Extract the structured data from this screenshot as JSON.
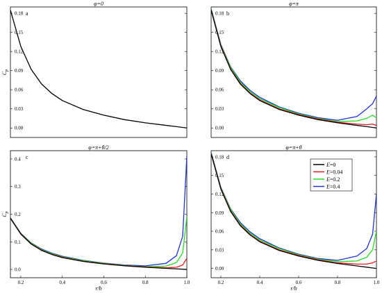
{
  "colors": {
    "E=0": "#000000",
    "E=0.04": "#e41a1c",
    "E=0.2": "#22dd22",
    "E=0.4": "#1f32d6"
  },
  "legend": {
    "placement": "top-right of panel d",
    "entries": [
      {
        "prefix": "E",
        "value": "=0",
        "color": "#000000"
      },
      {
        "prefix": "E",
        "value": "=0.04",
        "color": "#e41a1c"
      },
      {
        "prefix": "E",
        "value": "=0.2",
        "color": "#22dd22"
      },
      {
        "prefix": "E",
        "value": "=0.4",
        "color": "#1f32d6"
      }
    ]
  },
  "chart_data": [
    {
      "type": "line",
      "panel_label": "a",
      "title": "φ=0",
      "xlabel": "",
      "ylabel": "C_p",
      "xlim": [
        0.15,
        1.0
      ],
      "ylim": [
        -0.015,
        0.19
      ],
      "xticks": [],
      "yticks": [
        0.0,
        0.03,
        0.06,
        0.09,
        0.12,
        0.15,
        0.18
      ],
      "yticklabels": [
        "0.00",
        "0.03",
        "0.06",
        "0.09",
        "0.12",
        "0.15",
        "0.18"
      ],
      "series": [
        {
          "name": "E=0",
          "color": "#000000",
          "x": [
            0.15,
            0.2,
            0.25,
            0.3,
            0.35,
            0.4,
            0.5,
            0.6,
            0.7,
            0.8,
            0.9,
            1.0
          ],
          "y": [
            0.185,
            0.128,
            0.092,
            0.069,
            0.054,
            0.043,
            0.029,
            0.02,
            0.013,
            0.008,
            0.004,
            0.0
          ]
        }
      ]
    },
    {
      "type": "line",
      "panel_label": "b",
      "title": "φ=π",
      "xlabel": "",
      "ylabel": "",
      "xlim": [
        0.15,
        1.0
      ],
      "ylim": [
        -0.015,
        0.19
      ],
      "xticks": [],
      "yticks": [
        0.0,
        0.03,
        0.06,
        0.09,
        0.12,
        0.15,
        0.18
      ],
      "yticklabels": [
        "0.00",
        "0.03",
        "0.06",
        "0.09",
        "0.12",
        "0.15",
        "0.18"
      ],
      "series": [
        {
          "name": "E=0",
          "color": "#000000",
          "x": [
            0.15,
            0.2,
            0.25,
            0.3,
            0.35,
            0.4,
            0.5,
            0.6,
            0.7,
            0.8,
            0.9,
            0.95,
            1.0
          ],
          "y": [
            0.185,
            0.128,
            0.092,
            0.069,
            0.054,
            0.043,
            0.029,
            0.02,
            0.013,
            0.008,
            0.004,
            0.002,
            0.0
          ]
        },
        {
          "name": "E=0.04",
          "color": "#e41a1c",
          "x": [
            0.15,
            0.2,
            0.25,
            0.3,
            0.35,
            0.4,
            0.5,
            0.6,
            0.7,
            0.8,
            0.9,
            0.95,
            0.98,
            1.0
          ],
          "y": [
            0.185,
            0.129,
            0.093,
            0.07,
            0.055,
            0.044,
            0.03,
            0.021,
            0.014,
            0.009,
            0.006,
            0.005,
            0.006,
            0.004
          ]
        },
        {
          "name": "E=0.2",
          "color": "#22dd22",
          "x": [
            0.15,
            0.2,
            0.25,
            0.3,
            0.35,
            0.4,
            0.5,
            0.6,
            0.7,
            0.8,
            0.9,
            0.95,
            0.98,
            1.0
          ],
          "y": [
            0.186,
            0.13,
            0.095,
            0.072,
            0.057,
            0.046,
            0.032,
            0.022,
            0.015,
            0.01,
            0.011,
            0.015,
            0.02,
            0.016
          ]
        },
        {
          "name": "E=0.4",
          "color": "#1f32d6",
          "x": [
            0.15,
            0.2,
            0.25,
            0.3,
            0.35,
            0.4,
            0.5,
            0.6,
            0.7,
            0.8,
            0.9,
            0.95,
            0.98,
            1.0
          ],
          "y": [
            0.187,
            0.131,
            0.096,
            0.074,
            0.059,
            0.048,
            0.033,
            0.023,
            0.016,
            0.012,
            0.018,
            0.03,
            0.038,
            0.05
          ]
        }
      ]
    },
    {
      "type": "line",
      "panel_label": "c",
      "title": "φ=π+θ/2",
      "xlabel": "r/b",
      "ylabel": "C_p",
      "xlim": [
        0.15,
        1.0
      ],
      "ylim": [
        -0.03,
        0.43
      ],
      "xticks": [
        0.2,
        0.4,
        0.6,
        0.8,
        1.0
      ],
      "xticklabels": [
        "0.2",
        "0.4",
        "0.6",
        "0.8",
        "1.0"
      ],
      "yticks": [
        0.0,
        0.1,
        0.2,
        0.3,
        0.4
      ],
      "yticklabels": [
        "0.0",
        "0.1",
        "0.2",
        "0.3",
        "0.4"
      ],
      "series": [
        {
          "name": "E=0",
          "color": "#000000",
          "x": [
            0.15,
            0.2,
            0.25,
            0.3,
            0.35,
            0.4,
            0.5,
            0.6,
            0.7,
            0.8,
            0.9,
            0.95,
            1.0
          ],
          "y": [
            0.185,
            0.128,
            0.092,
            0.069,
            0.054,
            0.043,
            0.029,
            0.02,
            0.013,
            0.008,
            0.004,
            0.002,
            0.0
          ]
        },
        {
          "name": "E=0.04",
          "color": "#e41a1c",
          "x": [
            0.15,
            0.2,
            0.25,
            0.3,
            0.35,
            0.4,
            0.5,
            0.6,
            0.7,
            0.8,
            0.9,
            0.95,
            0.98,
            1.0
          ],
          "y": [
            0.185,
            0.129,
            0.093,
            0.07,
            0.055,
            0.044,
            0.03,
            0.021,
            0.014,
            0.009,
            0.006,
            0.008,
            0.016,
            0.04
          ]
        },
        {
          "name": "E=0.2",
          "color": "#22dd22",
          "x": [
            0.15,
            0.2,
            0.25,
            0.3,
            0.35,
            0.4,
            0.5,
            0.6,
            0.7,
            0.8,
            0.9,
            0.95,
            0.98,
            1.0
          ],
          "y": [
            0.186,
            0.13,
            0.095,
            0.072,
            0.057,
            0.046,
            0.032,
            0.022,
            0.015,
            0.01,
            0.012,
            0.025,
            0.06,
            0.19
          ]
        },
        {
          "name": "E=0.4",
          "color": "#1f32d6",
          "x": [
            0.15,
            0.2,
            0.25,
            0.3,
            0.35,
            0.4,
            0.5,
            0.6,
            0.7,
            0.8,
            0.9,
            0.95,
            0.98,
            1.0
          ],
          "y": [
            0.187,
            0.131,
            0.096,
            0.074,
            0.059,
            0.048,
            0.033,
            0.023,
            0.016,
            0.013,
            0.022,
            0.05,
            0.12,
            0.41
          ]
        }
      ]
    },
    {
      "type": "line",
      "panel_label": "d",
      "title": "φ=π+θ",
      "xlabel": "r/b",
      "ylabel": "",
      "xlim": [
        0.15,
        1.0
      ],
      "ylim": [
        -0.015,
        0.19
      ],
      "xticks": [
        0.2,
        0.4,
        0.6,
        0.8,
        1.0
      ],
      "xticklabels": [
        "0.2",
        "0.4",
        "0.6",
        "0.8",
        "1.0"
      ],
      "yticks": [
        0.0,
        0.03,
        0.06,
        0.09,
        0.12,
        0.15,
        0.18
      ],
      "yticklabels": [
        "0.00",
        "0.03",
        "0.06",
        "0.09",
        "0.12",
        "0.15",
        "0.18"
      ],
      "series": [
        {
          "name": "E=0",
          "color": "#000000",
          "x": [
            0.15,
            0.2,
            0.25,
            0.3,
            0.35,
            0.4,
            0.5,
            0.6,
            0.7,
            0.8,
            0.9,
            0.95,
            1.0
          ],
          "y": [
            0.185,
            0.128,
            0.092,
            0.069,
            0.054,
            0.043,
            0.029,
            0.02,
            0.013,
            0.008,
            0.004,
            0.002,
            0.0
          ]
        },
        {
          "name": "E=0.04",
          "color": "#e41a1c",
          "x": [
            0.15,
            0.2,
            0.25,
            0.3,
            0.35,
            0.4,
            0.5,
            0.6,
            0.7,
            0.8,
            0.9,
            0.95,
            0.98,
            1.0
          ],
          "y": [
            0.185,
            0.129,
            0.093,
            0.07,
            0.055,
            0.044,
            0.03,
            0.021,
            0.014,
            0.009,
            0.007,
            0.007,
            0.009,
            0.012
          ]
        },
        {
          "name": "E=0.2",
          "color": "#22dd22",
          "x": [
            0.15,
            0.2,
            0.25,
            0.3,
            0.35,
            0.4,
            0.5,
            0.6,
            0.7,
            0.8,
            0.9,
            0.95,
            0.98,
            1.0
          ],
          "y": [
            0.186,
            0.13,
            0.095,
            0.072,
            0.057,
            0.046,
            0.032,
            0.022,
            0.015,
            0.011,
            0.012,
            0.018,
            0.03,
            0.06
          ]
        },
        {
          "name": "E=0.4",
          "color": "#1f32d6",
          "x": [
            0.15,
            0.2,
            0.25,
            0.3,
            0.35,
            0.4,
            0.5,
            0.6,
            0.7,
            0.8,
            0.9,
            0.95,
            0.98,
            1.0
          ],
          "y": [
            0.187,
            0.131,
            0.096,
            0.074,
            0.059,
            0.048,
            0.033,
            0.023,
            0.016,
            0.013,
            0.02,
            0.032,
            0.055,
            0.12
          ]
        }
      ]
    }
  ]
}
